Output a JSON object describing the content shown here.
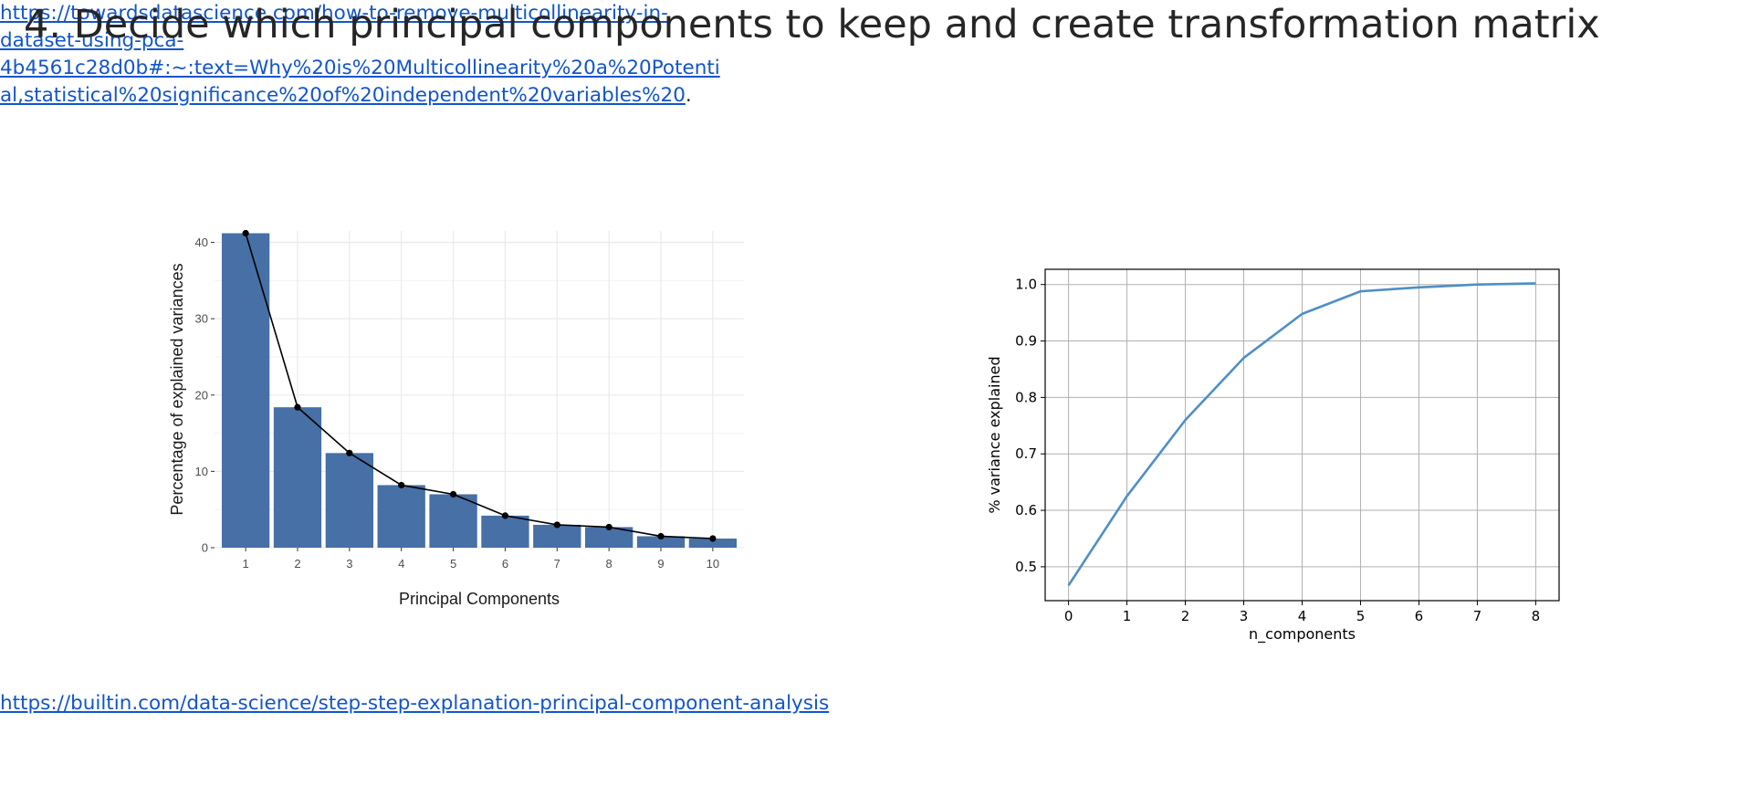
{
  "slide": {
    "title": "4. Decide which principal components to keep and create transformation matrix"
  },
  "links": {
    "left": "https://builtin.com/data-science/step-step-explanation-principal-component-analysis",
    "right_lines": [
      "https://towardsdatascience.com/how-to-remove-multicollinearity-in-",
      "dataset-using-pca-",
      "4b4561c28d0b#:~:text=Why%20is%20Multicollinearity%20a%20Potenti",
      "al,statistical%20significance%20of%20independent%20variables%20"
    ],
    "right_trailing": "."
  },
  "chart_data": [
    {
      "type": "bar",
      "xlabel": "Principal Components",
      "ylabel": "Percentage of explained variances",
      "categories": [
        "1",
        "2",
        "3",
        "4",
        "5",
        "6",
        "7",
        "8",
        "9",
        "10"
      ],
      "values": [
        41.2,
        18.4,
        12.4,
        8.2,
        7.0,
        4.2,
        3.0,
        2.7,
        1.5,
        1.2
      ],
      "overlay_line": true,
      "ylim": [
        0,
        41.5
      ],
      "yticks": [
        0,
        10,
        20,
        30,
        40
      ],
      "grid": true,
      "colors": {
        "bar": "#4670a6",
        "line": "#000000",
        "panel": "#ffffff",
        "grid": "#ebebeb"
      }
    },
    {
      "type": "line",
      "xlabel": "n_components",
      "ylabel": "% variance explained",
      "x": [
        0,
        1,
        2,
        3,
        4,
        5,
        6,
        7,
        8
      ],
      "y": [
        0.467,
        0.625,
        0.76,
        0.87,
        0.948,
        0.988,
        0.995,
        1.0,
        1.002
      ],
      "xlim": [
        -0.4,
        8.4
      ],
      "ylim": [
        0.44,
        1.027
      ],
      "xticks": [
        0,
        1,
        2,
        3,
        4,
        5,
        6,
        7,
        8
      ],
      "yticks": [
        0.5,
        0.6,
        0.7,
        0.8,
        0.9,
        1.0
      ],
      "ytick_labels": [
        "0.5",
        "0.6",
        "0.7",
        "0.8",
        "0.9",
        "1.0"
      ],
      "grid": true,
      "colors": {
        "line": "#4f8fc4",
        "grid": "#b0b0b0",
        "frame": "#000000"
      }
    }
  ]
}
